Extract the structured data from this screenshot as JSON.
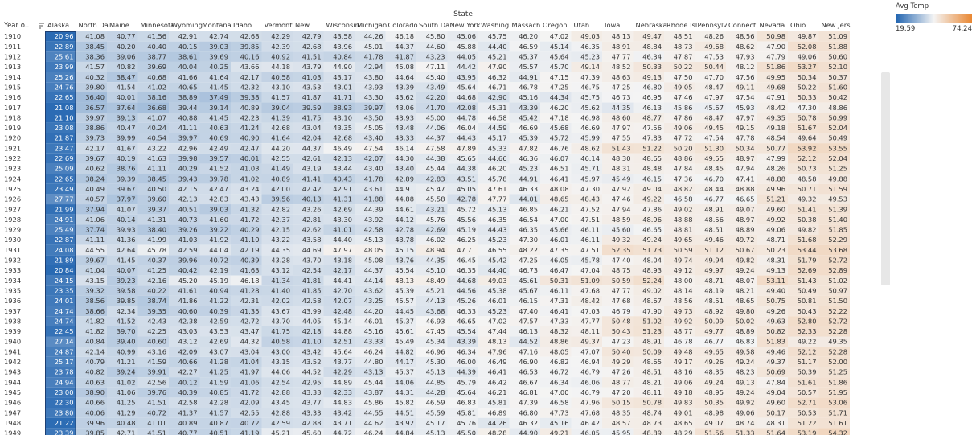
{
  "header": {
    "column_group_title": "State",
    "row_field_label": "Year o..",
    "sort_icon": "sort-descending-icon"
  },
  "legend": {
    "title": "Avg Temp",
    "min_label": "19.59",
    "max_label": "74.24"
  },
  "colors": {
    "low": "#1f63b0",
    "mid": "#f4f4f4",
    "high": "#e98732"
  },
  "chart_data": {
    "type": "heatmap",
    "title": "",
    "xlabel": "State",
    "ylabel": "Year o..",
    "color_range": [
      19.59,
      74.24
    ],
    "columns": [
      "Alaska",
      "North Da..",
      "Maine",
      "Minnesota",
      "Wyoming",
      "Montana",
      "Idaho",
      "Vermont",
      "New",
      "Wisconsin",
      "Michigan",
      "Colorado",
      "South Da..",
      "New York",
      "Washing..",
      "Massach..",
      "Oregon",
      "Utah",
      "Iowa",
      "Nebraska",
      "Rhode Isl..",
      "Pennsylv..",
      "Connecti..",
      "Nevada",
      "Ohio",
      "New Jers.."
    ],
    "rows": [
      "1910",
      "1911",
      "1912",
      "1913",
      "1914",
      "1915",
      "1916",
      "1917",
      "1918",
      "1919",
      "1920",
      "1921",
      "1922",
      "1923",
      "1924",
      "1925",
      "1926",
      "1927",
      "1928",
      "1929",
      "1930",
      "1931",
      "1932",
      "1933",
      "1934",
      "1935",
      "1936",
      "1937",
      "1938",
      "1939",
      "1940",
      "1941",
      "1942",
      "1943",
      "1944",
      "1945",
      "1946",
      "1947",
      "1948",
      "1949"
    ],
    "values": [
      [
        20.96,
        41.08,
        40.77,
        41.56,
        42.91,
        42.74,
        42.68,
        42.29,
        42.79,
        43.58,
        44.26,
        46.18,
        45.8,
        45.06,
        45.75,
        46.2,
        47.02,
        49.03,
        48.13,
        49.47,
        48.51,
        48.26,
        48.56,
        50.98,
        49.87,
        51.09
      ],
      [
        22.89,
        38.45,
        40.2,
        40.4,
        40.15,
        39.03,
        39.85,
        42.39,
        42.68,
        43.96,
        45.01,
        44.37,
        44.6,
        45.88,
        44.4,
        46.59,
        45.14,
        46.35,
        48.91,
        48.84,
        48.73,
        49.68,
        48.62,
        47.9,
        52.08,
        51.88
      ],
      [
        25.61,
        38.36,
        39.06,
        38.77,
        38.61,
        39.69,
        40.16,
        40.92,
        41.51,
        40.84,
        41.78,
        41.87,
        43.23,
        44.05,
        45.21,
        45.37,
        45.64,
        45.23,
        47.77,
        46.34,
        47.87,
        47.53,
        47.93,
        47.79,
        49.06,
        50.6
      ],
      [
        23.99,
        41.57,
        40.82,
        39.69,
        40.04,
        40.25,
        43.66,
        44.18,
        43.79,
        44.9,
        42.94,
        45.08,
        47.11,
        44.42,
        47.9,
        45.57,
        45.7,
        49.14,
        48.52,
        50.33,
        50.22,
        50.44,
        48.12,
        51.86,
        53.27,
        52.1
      ],
      [
        25.26,
        40.32,
        38.47,
        40.68,
        41.66,
        41.64,
        42.17,
        40.58,
        41.03,
        43.17,
        43.8,
        44.64,
        45.4,
        43.95,
        46.32,
        44.91,
        47.15,
        47.39,
        48.63,
        49.13,
        47.5,
        47.7,
        47.56,
        49.95,
        50.34,
        50.37
      ],
      [
        24.76,
        39.8,
        41.54,
        41.02,
        40.65,
        41.45,
        42.32,
        43.1,
        43.53,
        43.01,
        43.93,
        43.39,
        43.49,
        45.64,
        46.71,
        46.78,
        47.25,
        46.75,
        47.25,
        46.8,
        49.05,
        48.47,
        49.11,
        49.68,
        50.22,
        51.6
      ],
      [
        22.65,
        36.4,
        40.01,
        38.16,
        38.89,
        37.49,
        39.38,
        41.57,
        41.87,
        41.71,
        43.3,
        43.62,
        42.2,
        44.68,
        42.9,
        45.16,
        44.34,
        45.75,
        46.73,
        46.95,
        47.46,
        47.97,
        47.54,
        47.91,
        50.33,
        50.42
      ],
      [
        21.08,
        36.57,
        37.64,
        36.68,
        39.44,
        39.14,
        40.89,
        39.04,
        39.59,
        38.93,
        39.97,
        43.06,
        41.7,
        42.08,
        45.31,
        43.39,
        46.2,
        45.62,
        44.35,
        46.13,
        45.86,
        45.67,
        45.93,
        48.42,
        47.3,
        48.86
      ],
      [
        21.1,
        39.97,
        39.13,
        41.07,
        40.88,
        41.45,
        42.23,
        41.39,
        41.75,
        43.1,
        43.5,
        43.93,
        45.0,
        44.78,
        46.58,
        45.42,
        47.18,
        46.98,
        48.6,
        48.77,
        47.86,
        48.47,
        47.97,
        49.35,
        50.78,
        50.99
      ],
      [
        23.08,
        38.86,
        40.47,
        40.24,
        41.11,
        40.63,
        41.24,
        42.68,
        43.04,
        43.35,
        45.05,
        43.48,
        44.06,
        46.04,
        44.59,
        46.69,
        45.68,
        46.69,
        47.97,
        47.56,
        49.06,
        49.45,
        49.15,
        49.18,
        51.67,
        52.04
      ],
      [
        21.87,
        39.73,
        39.99,
        40.54,
        39.97,
        40.69,
        40.9,
        41.64,
        42.04,
        42.68,
        43.4,
        43.33,
        44.37,
        44.43,
        45.17,
        45.39,
        45.72,
        45.99,
        47.55,
        47.83,
        47.72,
        47.54,
        47.78,
        48.54,
        49.64,
        50.49
      ],
      [
        23.47,
        42.17,
        41.67,
        43.22,
        42.96,
        42.49,
        42.47,
        44.2,
        44.37,
        46.49,
        47.54,
        46.14,
        47.58,
        47.89,
        45.33,
        47.82,
        46.76,
        48.62,
        51.43,
        51.22,
        50.2,
        51.3,
        50.34,
        50.77,
        53.92,
        53.55
      ],
      [
        22.69,
        39.67,
        40.19,
        41.63,
        39.98,
        39.57,
        40.01,
        42.55,
        42.61,
        42.13,
        42.07,
        44.3,
        44.38,
        45.65,
        44.66,
        46.36,
        46.07,
        46.14,
        48.3,
        48.65,
        48.86,
        49.55,
        48.97,
        47.99,
        52.12,
        52.04
      ],
      [
        25.09,
        40.62,
        38.76,
        41.11,
        40.29,
        41.52,
        41.03,
        41.49,
        43.19,
        43.44,
        43.4,
        43.4,
        45.44,
        44.38,
        46.2,
        45.23,
        46.51,
        45.71,
        48.31,
        48.48,
        47.84,
        48.45,
        47.94,
        48.26,
        50.73,
        51.25
      ],
      [
        22.65,
        38.24,
        39.39,
        38.45,
        39.43,
        39.78,
        41.02,
        40.89,
        41.41,
        40.43,
        41.78,
        42.89,
        42.83,
        43.51,
        45.78,
        44.91,
        46.41,
        45.97,
        45.49,
        46.15,
        47.36,
        46.7,
        47.41,
        48.88,
        48.58,
        49.88
      ],
      [
        23.49,
        40.49,
        39.67,
        40.5,
        42.15,
        42.47,
        43.24,
        42.0,
        42.42,
        42.91,
        43.61,
        44.91,
        45.47,
        45.05,
        47.61,
        46.33,
        48.08,
        47.3,
        47.92,
        49.04,
        48.82,
        48.44,
        48.88,
        49.96,
        50.71,
        51.59
      ],
      [
        27.77,
        40.57,
        37.97,
        39.6,
        42.13,
        42.83,
        43.43,
        39.56,
        40.13,
        41.31,
        41.88,
        44.88,
        45.58,
        42.78,
        47.77,
        44.01,
        48.65,
        48.43,
        47.46,
        49.22,
        46.58,
        46.77,
        46.65,
        51.21,
        49.32,
        49.53
      ],
      [
        21.99,
        37.94,
        41.07,
        39.37,
        40.51,
        39.03,
        41.32,
        42.82,
        43.26,
        42.69,
        44.39,
        44.61,
        43.21,
        45.72,
        45.13,
        46.85,
        46.21,
        47.52,
        47.94,
        47.86,
        49.02,
        48.91,
        49.07,
        49.6,
        51.41,
        51.39
      ],
      [
        24.91,
        41.06,
        40.14,
        41.31,
        40.73,
        41.6,
        41.72,
        42.37,
        42.81,
        43.3,
        43.92,
        44.12,
        45.76,
        45.56,
        46.35,
        46.54,
        47.0,
        47.51,
        48.59,
        48.96,
        48.88,
        48.56,
        48.97,
        49.92,
        50.38,
        51.4
      ],
      [
        25.49,
        37.74,
        39.93,
        38.4,
        39.26,
        39.22,
        40.29,
        42.15,
        42.62,
        41.01,
        42.58,
        42.78,
        42.69,
        45.19,
        44.43,
        46.35,
        45.66,
        46.11,
        45.6,
        46.65,
        48.81,
        48.51,
        48.89,
        49.06,
        49.82,
        51.85
      ],
      [
        22.87,
        41.11,
        41.36,
        41.99,
        41.03,
        41.92,
        41.1,
        43.22,
        43.58,
        44.4,
        45.13,
        43.78,
        46.02,
        46.25,
        45.23,
        47.3,
        46.01,
        46.11,
        49.32,
        49.24,
        49.65,
        49.46,
        49.72,
        48.71,
        51.68,
        52.29
      ],
      [
        24.08,
        44.55,
        42.64,
        45.78,
        42.59,
        44.04,
        42.19,
        44.35,
        44.69,
        47.97,
        48.05,
        45.15,
        48.94,
        47.71,
        46.55,
        48.22,
        47.35,
        47.51,
        52.35,
        51.73,
        50.59,
        51.12,
        50.67,
        50.23,
        53.44,
        53.68
      ],
      [
        21.89,
        39.67,
        41.45,
        40.37,
        39.96,
        40.72,
        40.39,
        43.28,
        43.7,
        43.18,
        45.08,
        43.76,
        44.35,
        46.45,
        45.42,
        47.25,
        46.05,
        45.78,
        47.4,
        48.04,
        49.74,
        49.94,
        49.82,
        48.31,
        51.79,
        52.72
      ],
      [
        20.84,
        41.04,
        40.07,
        41.25,
        40.42,
        42.19,
        41.63,
        43.12,
        42.54,
        42.17,
        44.37,
        45.54,
        45.1,
        46.35,
        44.4,
        46.73,
        46.47,
        47.04,
        48.75,
        48.93,
        49.12,
        49.97,
        49.24,
        49.13,
        52.69,
        52.89
      ],
      [
        24.15,
        43.15,
        39.23,
        42.16,
        45.2,
        45.19,
        46.18,
        41.34,
        41.81,
        44.41,
        44.14,
        48.13,
        48.49,
        44.68,
        49.03,
        45.61,
        50.31,
        51.09,
        50.59,
        52.24,
        48.0,
        48.71,
        48.07,
        53.11,
        51.43,
        51.02
      ],
      [
        23.35,
        39.32,
        39.58,
        40.22,
        41.61,
        40.94,
        41.28,
        41.4,
        41.85,
        42.7,
        43.62,
        45.39,
        45.21,
        44.56,
        45.38,
        45.67,
        46.11,
        47.68,
        47.77,
        49.02,
        48.14,
        48.19,
        48.21,
        49.4,
        50.49,
        50.97
      ],
      [
        24.01,
        38.56,
        39.85,
        38.74,
        41.86,
        41.22,
        42.31,
        42.02,
        42.58,
        42.07,
        43.25,
        45.57,
        44.13,
        45.26,
        46.01,
        46.15,
        47.31,
        48.42,
        47.68,
        48.67,
        48.56,
        48.51,
        48.65,
        50.75,
        50.81,
        51.5
      ],
      [
        24.74,
        38.66,
        42.34,
        39.35,
        40.6,
        40.39,
        41.35,
        43.67,
        43.99,
        42.48,
        44.2,
        44.45,
        43.68,
        46.33,
        45.23,
        47.4,
        46.41,
        47.03,
        46.79,
        47.9,
        49.73,
        48.92,
        49.8,
        49.26,
        50.43,
        52.22
      ],
      [
        24.74,
        41.82,
        41.52,
        42.43,
        42.38,
        42.59,
        42.72,
        43.7,
        44.05,
        45.14,
        46.01,
        45.37,
        46.93,
        46.65,
        47.02,
        47.57,
        47.33,
        47.77,
        50.48,
        51.02,
        49.92,
        50.09,
        50.02,
        49.63,
        52.8,
        52.72
      ],
      [
        22.45,
        41.82,
        39.7,
        42.25,
        43.03,
        43.53,
        43.47,
        41.75,
        42.18,
        44.88,
        45.16,
        45.61,
        47.45,
        45.54,
        47.44,
        46.13,
        48.32,
        48.11,
        50.43,
        51.23,
        48.77,
        49.77,
        48.89,
        50.82,
        52.33,
        52.28
      ],
      [
        27.14,
        40.84,
        39.4,
        40.6,
        43.12,
        42.69,
        44.32,
        40.58,
        41.1,
        42.51,
        43.33,
        45.49,
        45.34,
        43.39,
        48.13,
        44.52,
        48.86,
        49.37,
        47.23,
        48.91,
        46.78,
        46.77,
        46.83,
        51.83,
        49.22,
        49.35
      ],
      [
        24.87,
        42.14,
        40.99,
        43.16,
        42.09,
        43.07,
        43.04,
        43.0,
        43.42,
        45.64,
        46.24,
        44.82,
        46.96,
        46.34,
        47.96,
        47.16,
        48.05,
        47.07,
        50.4,
        50.09,
        49.48,
        49.65,
        49.58,
        49.46,
        52.12,
        52.28
      ],
      [
        25.17,
        40.79,
        41.21,
        41.59,
        40.66,
        41.28,
        41.04,
        43.15,
        43.52,
        43.77,
        44.8,
        44.17,
        45.3,
        46.0,
        46.49,
        46.9,
        46.82,
        46.94,
        49.29,
        48.65,
        49.17,
        49.26,
        49.24,
        49.37,
        51.17,
        52.0
      ],
      [
        23.78,
        40.82,
        39.24,
        39.91,
        42.27,
        41.25,
        41.97,
        44.06,
        44.52,
        42.29,
        43.13,
        45.37,
        45.13,
        44.39,
        46.41,
        46.53,
        46.72,
        46.79,
        47.26,
        48.51,
        48.16,
        48.35,
        48.23,
        50.69,
        50.39,
        51.25
      ],
      [
        24.94,
        40.63,
        41.02,
        42.56,
        40.12,
        41.59,
        41.06,
        42.54,
        42.95,
        44.89,
        45.44,
        44.06,
        44.85,
        45.79,
        46.42,
        46.67,
        46.34,
        46.06,
        48.77,
        48.21,
        49.06,
        49.24,
        49.13,
        47.84,
        51.61,
        51.86
      ],
      [
        23.0,
        38.9,
        41.06,
        39.76,
        40.39,
        40.85,
        41.72,
        42.88,
        43.33,
        42.33,
        43.87,
        44.31,
        44.28,
        45.64,
        46.21,
        46.81,
        47.0,
        46.79,
        47.2,
        48.11,
        49.18,
        48.95,
        49.24,
        49.04,
        50.57,
        51.95
      ],
      [
        22.3,
        40.66,
        41.25,
        41.51,
        42.58,
        42.28,
        42.09,
        43.45,
        43.77,
        44.83,
        45.86,
        45.82,
        46.59,
        46.83,
        45.81,
        47.39,
        46.58,
        47.96,
        50.15,
        50.78,
        49.83,
        50.35,
        49.92,
        49.6,
        52.71,
        53.06
      ],
      [
        23.8,
        40.06,
        41.29,
        40.72,
        41.37,
        41.57,
        42.55,
        42.88,
        43.33,
        43.42,
        44.55,
        44.51,
        45.59,
        45.81,
        46.89,
        46.8,
        47.73,
        47.68,
        48.35,
        48.74,
        49.01,
        48.98,
        49.06,
        50.17,
        50.53,
        51.71
      ],
      [
        21.22,
        39.96,
        40.48,
        41.01,
        40.89,
        40.87,
        40.72,
        42.59,
        42.88,
        43.71,
        44.62,
        43.92,
        45.17,
        45.76,
        44.26,
        46.32,
        45.16,
        46.42,
        48.57,
        48.73,
        48.65,
        49.07,
        48.74,
        48.31,
        51.22,
        51.61
      ],
      [
        23.39,
        39.85,
        42.71,
        41.51,
        40.77,
        40.51,
        41.19,
        45.21,
        45.6,
        44.72,
        46.24,
        44.84,
        45.13,
        45.5,
        48.28,
        44.9,
        49.21,
        46.05,
        45.95,
        48.89,
        48.29,
        51.56,
        51.33,
        51.64,
        53.19,
        54.32
      ]
    ]
  }
}
